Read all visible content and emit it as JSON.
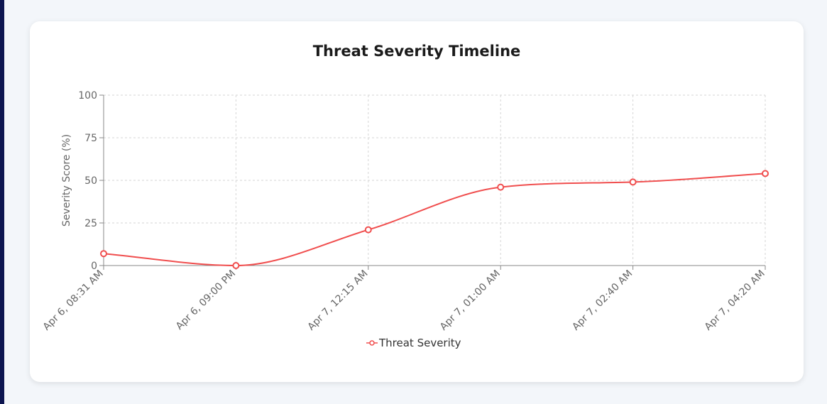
{
  "chart_data": {
    "type": "line",
    "title": "Threat Severity Timeline",
    "xlabel": "",
    "ylabel": "Severity Score (%)",
    "ylim": [
      0,
      100
    ],
    "yticks": [
      "0",
      "25",
      "50",
      "75",
      "100"
    ],
    "categories": [
      "Apr 6, 08:31 AM",
      "Apr 6, 09:00 PM",
      "Apr 7, 12:15 AM",
      "Apr 7, 01:00 AM",
      "Apr 7, 02:40 AM",
      "Apr 7, 04:20 AM"
    ],
    "series": [
      {
        "name": "Threat Severity",
        "values": [
          7,
          0,
          21,
          46,
          49,
          54
        ],
        "color": "#f04e4e"
      }
    ],
    "grid": true,
    "legend": "bottom"
  }
}
